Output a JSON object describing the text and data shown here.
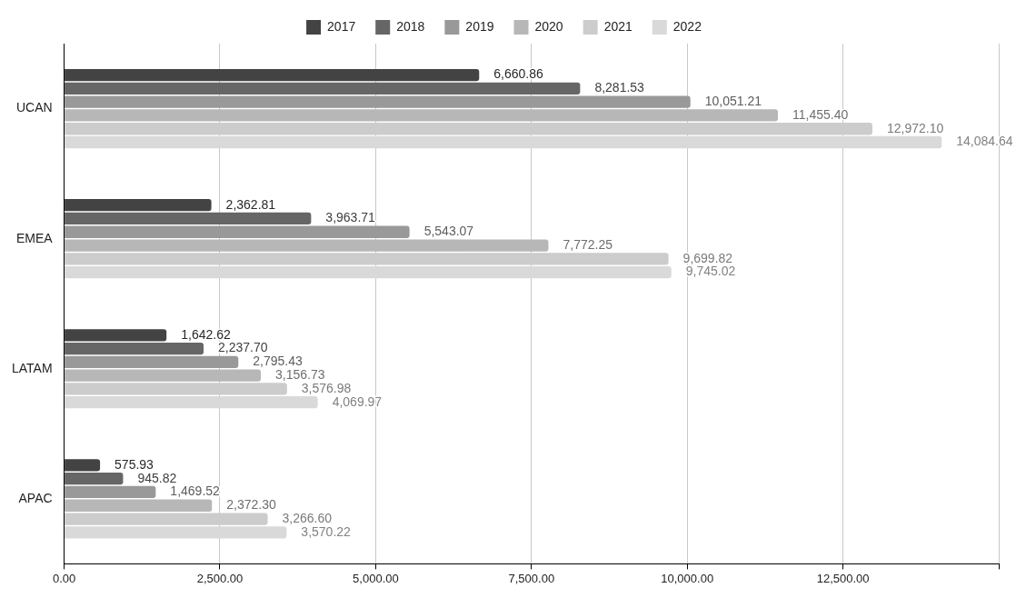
{
  "chart_data": {
    "type": "bar",
    "orientation": "horizontal",
    "categories": [
      "UCAN",
      "EMEA",
      "LATAM",
      "APAC"
    ],
    "series": [
      {
        "name": "2017",
        "color": "#434343",
        "values": [
          6660.86,
          2362.81,
          1642.62,
          575.93
        ],
        "value_labels": [
          "6,660.86",
          "2,362.81",
          "1,642.62",
          "575.93"
        ]
      },
      {
        "name": "2018",
        "color": "#666666",
        "values": [
          8281.53,
          3963.71,
          2237.7,
          945.82
        ],
        "value_labels": [
          "8,281.53",
          "3,963.71",
          "2,237.70",
          "945.82"
        ]
      },
      {
        "name": "2019",
        "color": "#999999",
        "values": [
          10051.21,
          5543.07,
          2795.43,
          1469.52
        ],
        "value_labels": [
          "10,051.21",
          "5,543.07",
          "2,795.43",
          "1,469.52"
        ]
      },
      {
        "name": "2020",
        "color": "#b7b7b7",
        "values": [
          11455.4,
          7772.25,
          3156.73,
          2372.3
        ],
        "value_labels": [
          "11,455.40",
          "7,772.25",
          "3,156.73",
          "2,372.30"
        ]
      },
      {
        "name": "2021",
        "color": "#cccccc",
        "values": [
          12972.1,
          9699.82,
          3576.98,
          3266.6
        ],
        "value_labels": [
          "12,972.10",
          "9,699.82",
          "3,576.98",
          "3,266.60"
        ]
      },
      {
        "name": "2022",
        "color": "#d9d9d9",
        "values": [
          14084.64,
          9745.02,
          4069.97,
          3570.22
        ],
        "value_labels": [
          "14,084.64",
          "9,745.02",
          "4,069.97",
          "3,570.22"
        ]
      }
    ],
    "xlim": [
      0,
      15000
    ],
    "xticks": [
      {
        "value": 0,
        "label": "0.00"
      },
      {
        "value": 2500,
        "label": "2,500.00"
      },
      {
        "value": 5000,
        "label": "5,000.00"
      },
      {
        "value": 7500,
        "label": "7,500.00"
      },
      {
        "value": 10000,
        "label": "10,000.00"
      },
      {
        "value": 12500,
        "label": "12,500.00"
      },
      {
        "value": 15000,
        "label": null
      }
    ],
    "grid": "x",
    "legend": "top"
  }
}
